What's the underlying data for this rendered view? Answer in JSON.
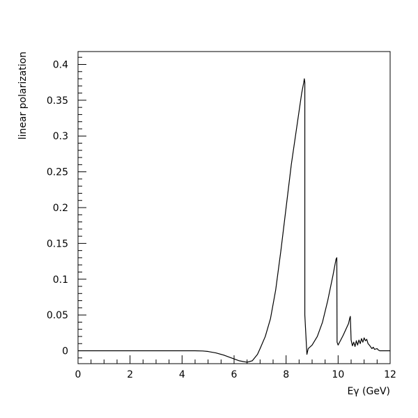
{
  "chart_data": {
    "type": "line",
    "title": "",
    "xlabel": "Eγ (GeV)",
    "ylabel": "linear polarization",
    "xlim": [
      0,
      12
    ],
    "ylim": [
      -0.018,
      0.418
    ],
    "grid": false,
    "legend": "none",
    "x_ticks": [
      {
        "value": 0,
        "label": "0"
      },
      {
        "value": 2,
        "label": "2"
      },
      {
        "value": 4,
        "label": "4"
      },
      {
        "value": 6,
        "label": "6"
      },
      {
        "value": 8,
        "label": "8"
      },
      {
        "value": 10,
        "label": "10"
      },
      {
        "value": 12,
        "label": "12"
      }
    ],
    "y_ticks": [
      {
        "value": 0,
        "label": "0"
      },
      {
        "value": 0.05,
        "label": "0.05"
      },
      {
        "value": 0.1,
        "label": "0.1"
      },
      {
        "value": 0.15,
        "label": "0.15"
      },
      {
        "value": 0.2,
        "label": "0.2"
      },
      {
        "value": 0.25,
        "label": "0.25"
      },
      {
        "value": 0.3,
        "label": "0.3"
      },
      {
        "value": 0.35,
        "label": "0.35"
      },
      {
        "value": 0.4,
        "label": "0.4"
      }
    ],
    "series": [
      {
        "color": "#000000",
        "points": [
          [
            0,
            0
          ],
          [
            1,
            0
          ],
          [
            2,
            0
          ],
          [
            3,
            0
          ],
          [
            4,
            0
          ],
          [
            4.5,
            0
          ],
          [
            4.8,
            -0.0003
          ],
          [
            5.0,
            -0.001
          ],
          [
            5.3,
            -0.003
          ],
          [
            5.6,
            -0.006
          ],
          [
            5.9,
            -0.01
          ],
          [
            6.2,
            -0.014
          ],
          [
            6.5,
            -0.016
          ],
          [
            6.7,
            -0.014
          ],
          [
            6.9,
            -0.005
          ],
          [
            7.0,
            0.003
          ],
          [
            7.2,
            0.02
          ],
          [
            7.4,
            0.045
          ],
          [
            7.6,
            0.085
          ],
          [
            7.8,
            0.14
          ],
          [
            8.0,
            0.2
          ],
          [
            8.2,
            0.26
          ],
          [
            8.4,
            0.31
          ],
          [
            8.6,
            0.36
          ],
          [
            8.68,
            0.375
          ],
          [
            8.7,
            0.38
          ],
          [
            8.72,
            0.375
          ],
          [
            8.72,
            0.05
          ],
          [
            8.8,
            -0.005
          ],
          [
            8.85,
            0.003
          ],
          [
            9.0,
            0.008
          ],
          [
            9.2,
            0.02
          ],
          [
            9.4,
            0.04
          ],
          [
            9.6,
            0.07
          ],
          [
            9.8,
            0.105
          ],
          [
            9.92,
            0.128
          ],
          [
            9.95,
            0.13
          ],
          [
            9.96,
            0.012
          ],
          [
            10.0,
            0.008
          ],
          [
            10.1,
            0.015
          ],
          [
            10.2,
            0.022
          ],
          [
            10.3,
            0.03
          ],
          [
            10.4,
            0.038
          ],
          [
            10.45,
            0.046
          ],
          [
            10.47,
            0.048
          ],
          [
            10.5,
            0.015
          ],
          [
            10.55,
            0.007
          ],
          [
            10.6,
            0.012
          ],
          [
            10.65,
            0.006
          ],
          [
            10.7,
            0.014
          ],
          [
            10.75,
            0.008
          ],
          [
            10.8,
            0.015
          ],
          [
            10.85,
            0.01
          ],
          [
            10.9,
            0.017
          ],
          [
            10.95,
            0.012
          ],
          [
            11.0,
            0.018
          ],
          [
            11.05,
            0.014
          ],
          [
            11.1,
            0.016
          ],
          [
            11.15,
            0.01
          ],
          [
            11.2,
            0.008
          ],
          [
            11.3,
            0.003
          ],
          [
            11.35,
            0.005
          ],
          [
            11.4,
            0.002
          ],
          [
            11.5,
            0.003
          ],
          [
            11.55,
            0.001
          ],
          [
            11.6,
            0
          ],
          [
            11.8,
            0
          ],
          [
            12,
            0
          ]
        ]
      }
    ]
  }
}
